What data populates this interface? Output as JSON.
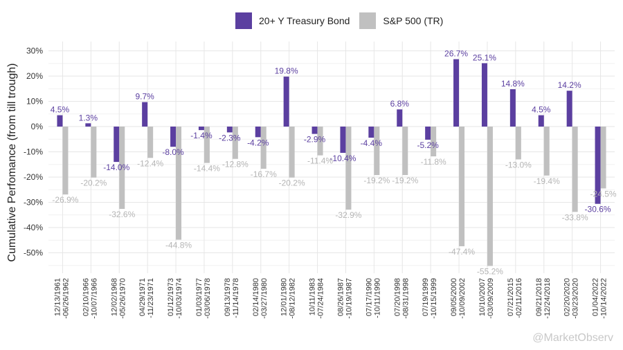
{
  "colors": {
    "bond": "#5b3fa0",
    "sp500": "#c0c0c0",
    "grid": "#e6e6e6",
    "bond_label": "#5b3fa0",
    "sp_label": "#b5b5b5"
  },
  "legend": {
    "bond": "20+ Y Treasury Bond",
    "sp500": "S&P 500 (TR)"
  },
  "watermark": "@MarketObserv",
  "chart_data": {
    "type": "bar",
    "ylabel": "Cumulative Perfomance (from till trough)",
    "ylim": [
      -60,
      30
    ],
    "yticks": [
      "30%",
      "20%",
      "10%",
      "0%",
      "-10%",
      "-20%",
      "-30%",
      "-40%",
      "-50%"
    ],
    "ytick_values": [
      30,
      20,
      10,
      0,
      -10,
      -20,
      -30,
      -40,
      -50
    ],
    "legend_position": "top",
    "grid": true,
    "categories": [
      [
        "12/13/1961",
        "-06/26/1962"
      ],
      [
        "02/10/1966",
        "-10/07/1966"
      ],
      [
        "12/02/1968",
        "-05/26/1970"
      ],
      [
        "04/29/1971",
        "-11/23/1971"
      ],
      [
        "01/12/1973",
        "-10/03/1974"
      ],
      [
        "01/03/1977",
        "-03/06/1978"
      ],
      [
        "09/13/1978",
        "-11/14/1978"
      ],
      [
        "02/14/1980",
        "-03/27/1980"
      ],
      [
        "12/01/1980",
        "-08/12/1982"
      ],
      [
        "10/11/1983",
        "-07/24/1984"
      ],
      [
        "08/26/1987",
        "-10/19/1987"
      ],
      [
        "07/17/1990",
        "-10/11/1990"
      ],
      [
        "07/20/1998",
        "-08/31/1998"
      ],
      [
        "07/19/1999",
        "-10/15/1999"
      ],
      [
        "09/05/2000",
        "-10/09/2002"
      ],
      [
        "10/10/2007",
        "-03/09/2009"
      ],
      [
        "07/21/2015",
        "-02/11/2016"
      ],
      [
        "09/21/2018",
        "-12/24/2018"
      ],
      [
        "02/20/2020",
        "-03/23/2020"
      ],
      [
        "01/04/2022",
        "-10/14/2022"
      ]
    ],
    "series": [
      {
        "name": "20+ Y Treasury Bond",
        "values": [
          4.5,
          1.3,
          -14.0,
          9.7,
          -8.0,
          -1.4,
          -2.3,
          -4.2,
          19.8,
          -2.9,
          -10.4,
          -4.4,
          6.8,
          -5.2,
          26.7,
          25.1,
          14.8,
          4.5,
          14.2,
          -30.6
        ],
        "labels": [
          "4.5%",
          "1.3%",
          "-14.0%",
          "9.7%",
          "-8.0%",
          "-1.4%",
          "-2.3%",
          "-4.2%",
          "19.8%",
          "-2.9%",
          "-10.4%",
          "-4.4%",
          "6.8%",
          "-5.2%",
          "26.7%",
          "25.1%",
          "14.8%",
          "4.5%",
          "14.2%",
          "-30.6%"
        ]
      },
      {
        "name": "S&P 500 (TR)",
        "values": [
          -26.9,
          -20.2,
          -32.6,
          -12.4,
          -44.8,
          -14.4,
          -12.8,
          -16.7,
          -20.2,
          -11.4,
          -32.9,
          -19.2,
          -19.2,
          -11.8,
          -47.4,
          -55.2,
          -13.0,
          -19.4,
          -33.8,
          -24.5
        ],
        "labels": [
          "-26.9%",
          "-20.2%",
          "-32.6%",
          "-12.4%",
          "-44.8%",
          "-14.4%",
          "-12.8%",
          "-16.7%",
          "-20.2%",
          "-11.4%",
          "-32.9%",
          "-19.2%",
          "-19.2%",
          "-11.8%",
          "-47.4%",
          "-55.2%",
          "-13.0%",
          "-19.4%",
          "-33.8%",
          "-24.5%"
        ]
      }
    ]
  }
}
